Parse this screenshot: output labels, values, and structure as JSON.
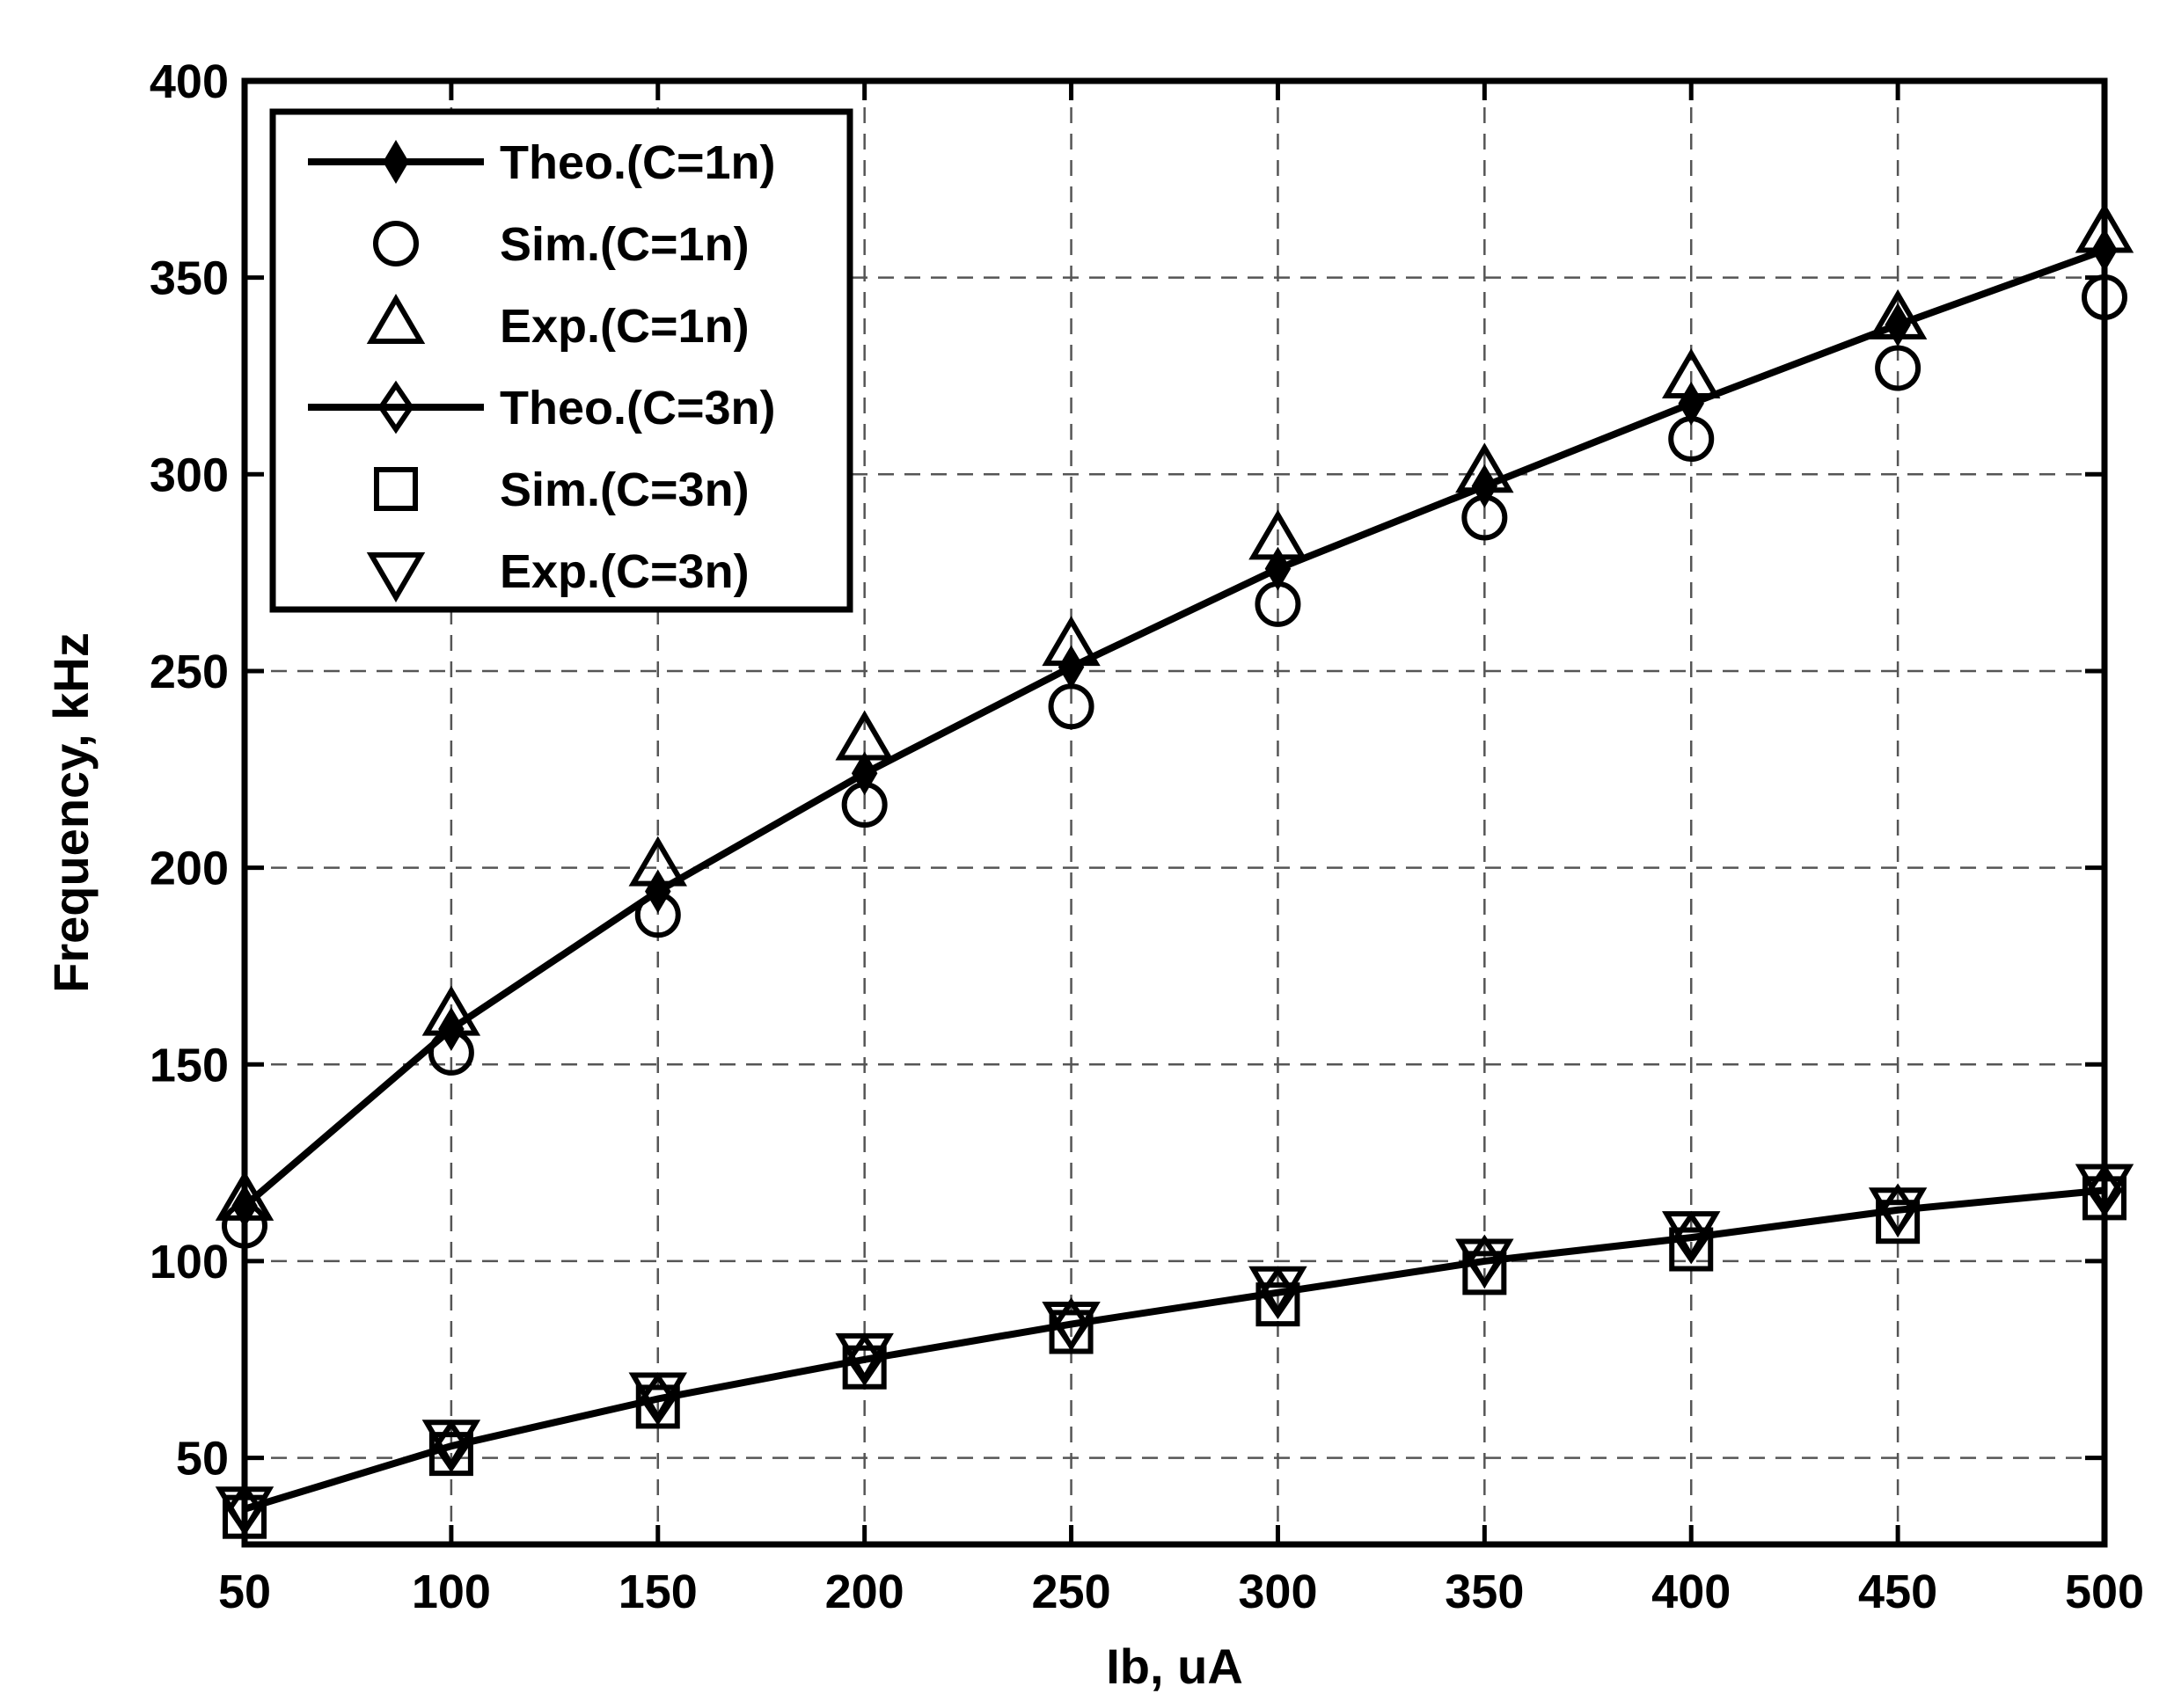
{
  "chart_data": {
    "type": "line",
    "title": "",
    "xlabel": "Ib, uA",
    "ylabel": "Frequency, kHz",
    "xlim": [
      50,
      500
    ],
    "ylim": [
      28,
      400
    ],
    "xticks": [
      50,
      100,
      150,
      200,
      250,
      300,
      350,
      400,
      450,
      500
    ],
    "yticks": [
      50,
      100,
      150,
      200,
      250,
      300,
      350,
      400
    ],
    "grid": true,
    "legend_position": "top-left",
    "x": [
      50,
      100,
      150,
      200,
      250,
      300,
      350,
      400,
      450,
      500
    ],
    "series": [
      {
        "name": "Theo.(C=1n)",
        "marker": "plus-filled",
        "line": true,
        "values": [
          114,
          159,
          194,
          224,
          251,
          276,
          297,
          318,
          338,
          357
        ]
      },
      {
        "name": "Sim.(C=1n)",
        "marker": "circle",
        "line": false,
        "values": [
          109,
          153,
          188,
          216,
          241,
          267,
          289,
          309,
          327,
          345
        ]
      },
      {
        "name": "Exp.(C=1n)",
        "marker": "triangle-up",
        "line": false,
        "values": [
          115,
          162,
          200,
          232,
          256,
          283,
          300,
          324,
          339,
          361
        ]
      },
      {
        "name": "Theo.(C=3n)",
        "marker": "diamond",
        "line": true,
        "values": [
          37,
          53,
          65,
          75,
          84,
          92,
          100,
          106,
          113,
          118
        ]
      },
      {
        "name": "Sim.(C=3n)",
        "marker": "square",
        "line": false,
        "values": [
          35,
          51,
          63,
          73,
          82,
          89,
          97,
          103,
          110,
          116
        ]
      },
      {
        "name": "Exp.(C=3n)",
        "marker": "triangle-down",
        "line": false,
        "values": [
          38,
          55,
          67,
          77,
          85,
          94,
          101,
          108,
          114,
          120
        ]
      }
    ]
  }
}
